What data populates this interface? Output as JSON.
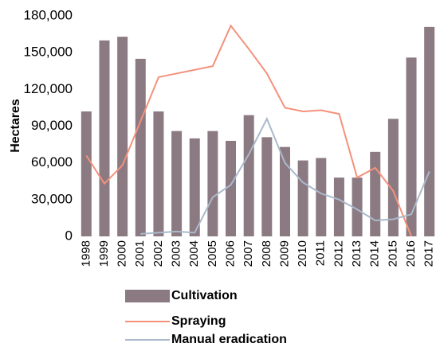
{
  "chart_data": {
    "type": "bar",
    "categories": [
      "1998",
      "1999",
      "2000",
      "2001",
      "2002",
      "2003",
      "2004",
      "2005",
      "2006",
      "2007",
      "2008",
      "2009",
      "2010",
      "2011",
      "2012",
      "2013",
      "2014",
      "2015",
      "2016",
      "2017"
    ],
    "y_label": "Hectares",
    "series": [
      {
        "name": "Cultivation",
        "type": "bar",
        "color": "#8b7a82",
        "values": [
          102000,
          160000,
          163000,
          145000,
          102000,
          86000,
          80000,
          86000,
          78000,
          99000,
          81000,
          73000,
          62000,
          64000,
          48000,
          48000,
          69000,
          96000,
          146000,
          171000
        ]
      },
      {
        "name": "Spraying",
        "type": "line",
        "color": "#f4917b",
        "values": [
          66000,
          43000,
          58000,
          94000,
          130000,
          133000,
          136000,
          139000,
          172000,
          153000,
          133000,
          105000,
          102000,
          103000,
          100000,
          48000,
          56000,
          37000,
          0,
          null
        ]
      },
      {
        "name": "Manual eradication",
        "type": "line",
        "color": "#aab9cb",
        "values": [
          null,
          null,
          null,
          2000,
          3000,
          4000,
          3000,
          32000,
          42000,
          67000,
          96000,
          60000,
          44000,
          35000,
          30000,
          22000,
          13000,
          14000,
          18000,
          53000
        ]
      }
    ],
    "ylim": [
      0,
      180000
    ],
    "yticks": [
      0,
      {
        "value": 30000,
        "label": "30,000"
      },
      {
        "value": 60000,
        "label": "60,000"
      },
      {
        "value": 90000,
        "label": "90,000"
      },
      {
        "value": 120000,
        "label": "120,000"
      },
      {
        "value": 150000,
        "label": "150,000"
      },
      {
        "value": 180000,
        "label": "180,000"
      }
    ],
    "grid": false
  }
}
